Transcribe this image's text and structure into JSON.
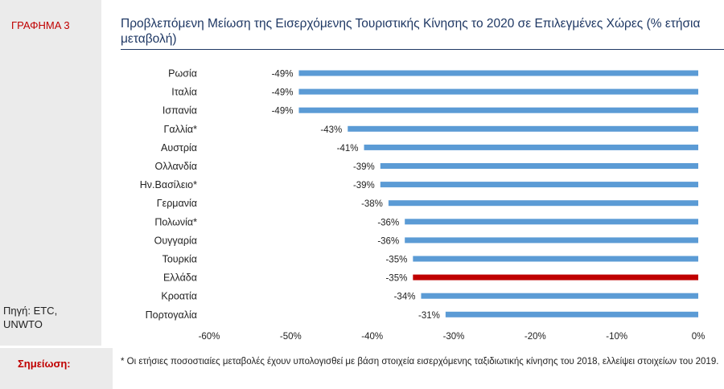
{
  "figure_label": "ΓΡΑΦΗΜΑ 3",
  "source": "Πηγή: ETC, UNWTO",
  "title": "Προβλεπόμενη Μείωση της Εισερχόμενης Τουριστικής Κίνησης το 2020 σε Επιλεγμένες Χώρες (% ετήσια μεταβολή)",
  "note_label": "Σημείωση:",
  "note_text": "* Οι ετήσιες ποσοστιαίες μεταβολές έχουν υπολογισθεί με βάση στοιχεία εισερχόμενης ταξιδιωτικής κίνησης του 2018, ελλείψει στοιχείων του 2019.",
  "colors": {
    "bar": "#5b9bd5",
    "highlight": "#c00000",
    "title": "#1f3864",
    "panel": "#ebebeb"
  },
  "chart_data": {
    "type": "bar",
    "orientation": "horizontal",
    "title": "Προβλεπόμενη Μείωση της Εισερχόμενης Τουριστικής Κίνησης το 2020 σε Επιλεγμένες Χώρες (% ετήσια μεταβολή)",
    "xlabel": "",
    "ylabel": "",
    "xlim": [
      -60,
      0
    ],
    "xticks": [
      -60,
      -50,
      -40,
      -30,
      -20,
      -10,
      0
    ],
    "tick_suffix": "%",
    "grid": false,
    "legend": "none",
    "categories": [
      "Ρωσία",
      "Ιταλία",
      "Ισπανία",
      "Γαλλία*",
      "Αυστρία",
      "Ολλανδία",
      "Ην.Βασίλειο*",
      "Γερμανία",
      "Πολωνία*",
      "Ουγγαρία",
      "Τουρκία",
      "Ελλάδα",
      "Κροατία",
      "Πορτογαλία"
    ],
    "values": [
      -49,
      -49,
      -49,
      -43,
      -41,
      -39,
      -39,
      -38,
      -36,
      -36,
      -35,
      -35,
      -34,
      -31
    ],
    "value_labels": [
      "-49%",
      "-49%",
      "-49%",
      "-43%",
      "-41%",
      "-39%",
      "-39%",
      "-38%",
      "-36%",
      "-36%",
      "-35%",
      "-35%",
      "-34%",
      "-31%"
    ],
    "highlight_category": "Ελλάδα"
  }
}
